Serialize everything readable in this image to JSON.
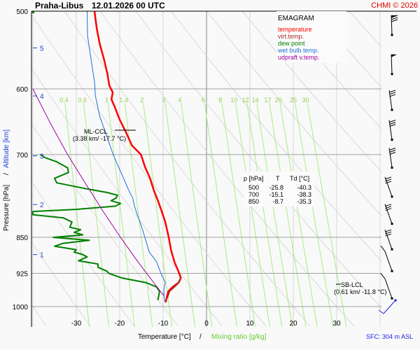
{
  "header": {
    "station": "Praha-Libus",
    "datetime": "12.01.2026 00 UTC",
    "copyright": "CHMI © 2026"
  },
  "legend": {
    "title": "EMAGRAM",
    "items": [
      {
        "label": "temperature",
        "color": "#ff0000"
      },
      {
        "label": "virt.temp.",
        "color": "#a52a2a"
      },
      {
        "label": "dew point",
        "color": "#008000"
      },
      {
        "label": "wet bulb temp.",
        "color": "#1e6fd9"
      },
      {
        "label": "udpraft v.temp.",
        "color": "#a000a0"
      }
    ]
  },
  "table": {
    "headers": [
      "p [hPa]",
      "T",
      "Td [°C]"
    ],
    "rows": [
      [
        "500",
        "-25.8",
        "-40.3"
      ],
      [
        "700",
        "-15.1",
        "-38.3"
      ],
      [
        "850",
        "-8.7",
        "-35.3"
      ]
    ]
  },
  "annotations": {
    "ml_ccl_title": "ML-CCL",
    "ml_ccl_value": "(3.38 km/ -17.7 °C)",
    "sb_lcl_title": "SB-LCL",
    "sb_lcl_value": "(0.61 km/ -11.8 °C)",
    "sfc": "SFC: 304 m ASL"
  },
  "chart_data": {
    "type": "line",
    "title": "Praha-Libus 12.01.2026 00 UTC",
    "subtitle": "EMAGRAM",
    "xlabel": "Temperature [°C]",
    "xlabel2": "Mixing ratio [g/kg]",
    "ylabel": "Pressure [hPa]",
    "ylabel2": "Altitude [km]",
    "xlim": [
      -38,
      35
    ],
    "ylim": [
      1000,
      500
    ],
    "x_ticks": [
      -30,
      -20,
      -10,
      0,
      10,
      20,
      30
    ],
    "y_ticks": [
      500,
      600,
      700,
      850,
      925,
      1000
    ],
    "altitude_ticks": [
      {
        "km": 5,
        "p": 545
      },
      {
        "km": 4,
        "p": 610
      },
      {
        "km": 3,
        "p": 702
      },
      {
        "km": 2,
        "p": 787
      },
      {
        "km": 1,
        "p": 885
      }
    ],
    "mixing_ratio_labels": [
      "0.4",
      "0.6",
      "1",
      "1.4",
      "2",
      "3",
      "4",
      "6",
      "8",
      "10",
      "12",
      "14",
      "17",
      "20",
      "25",
      "30"
    ],
    "mixing_ratio_values": [
      0.4,
      0.6,
      1,
      1.4,
      2,
      3,
      4,
      6,
      8,
      10,
      12,
      14,
      17,
      20,
      25,
      30
    ],
    "grid": true,
    "series": [
      {
        "name": "temperature",
        "color": "#ff0000",
        "points": [
          [
            500,
            -25.8
          ],
          [
            520,
            -25.3
          ],
          [
            540,
            -24.6
          ],
          [
            560,
            -23.6
          ],
          [
            580,
            -22.8
          ],
          [
            595,
            -22.4
          ],
          [
            605,
            -21.6
          ],
          [
            615,
            -21.9
          ],
          [
            625,
            -21.2
          ],
          [
            645,
            -20.0
          ],
          [
            665,
            -18.5
          ],
          [
            685,
            -17.2
          ],
          [
            700,
            -15.1
          ],
          [
            720,
            -14.2
          ],
          [
            740,
            -13.0
          ],
          [
            760,
            -12.2
          ],
          [
            780,
            -11.2
          ],
          [
            800,
            -10.3
          ],
          [
            820,
            -9.5
          ],
          [
            850,
            -8.7
          ],
          [
            875,
            -8.2
          ],
          [
            900,
            -7.4
          ],
          [
            920,
            -6.5
          ],
          [
            935,
            -5.9
          ],
          [
            945,
            -6.4
          ],
          [
            955,
            -7.8
          ],
          [
            965,
            -8.8
          ],
          [
            980,
            -9.2
          ],
          [
            990,
            -9.4
          ]
        ]
      },
      {
        "name": "virt.temp.",
        "color": "#a52a2a",
        "points": [
          [
            935,
            -5.9
          ],
          [
            950,
            -6.8
          ],
          [
            965,
            -8.5
          ],
          [
            980,
            -9.0
          ]
        ]
      },
      {
        "name": "wet bulb temp.",
        "color": "#1e6fd9",
        "points": [
          [
            500,
            -27.5
          ],
          [
            530,
            -27.4
          ],
          [
            560,
            -26.6
          ],
          [
            590,
            -25.8
          ],
          [
            610,
            -25.6
          ],
          [
            640,
            -24.6
          ],
          [
            670,
            -23.0
          ],
          [
            700,
            -21.5
          ],
          [
            720,
            -20.3
          ],
          [
            740,
            -19.1
          ],
          [
            760,
            -18.0
          ],
          [
            775,
            -17.0
          ],
          [
            790,
            -16.6
          ],
          [
            805,
            -16.0
          ],
          [
            820,
            -15.3
          ],
          [
            850,
            -14.2
          ],
          [
            880,
            -13.2
          ],
          [
            900,
            -11.5
          ],
          [
            925,
            -10.5
          ],
          [
            945,
            -9.5
          ],
          [
            960,
            -9.8
          ],
          [
            975,
            -9.8
          ],
          [
            990,
            -9.6
          ]
        ]
      },
      {
        "name": "dew point",
        "color": "#008000",
        "points": [
          [
            700,
            -38.3
          ],
          [
            705,
            -37.2
          ],
          [
            712,
            -34.5
          ],
          [
            722,
            -32.0
          ],
          [
            730,
            -31.8
          ],
          [
            740,
            -35.0
          ],
          [
            748,
            -34.5
          ],
          [
            758,
            -28.0
          ],
          [
            765,
            -23.0
          ],
          [
            770,
            -20.5
          ],
          [
            775,
            -20.8
          ],
          [
            780,
            -22.0
          ],
          [
            785,
            -19.8
          ],
          [
            790,
            -21.0
          ],
          [
            796,
            -30.0
          ],
          [
            800,
            -40.0
          ],
          [
            806,
            -40.0
          ],
          [
            812,
            -33.0
          ],
          [
            820,
            -31.0
          ],
          [
            830,
            -31.5
          ],
          [
            835,
            -29.0
          ],
          [
            840,
            -30.5
          ],
          [
            845,
            -28.5
          ],
          [
            850,
            -35.3
          ],
          [
            856,
            -27.0
          ],
          [
            862,
            -33.0
          ],
          [
            868,
            -35.0
          ],
          [
            875,
            -30.0
          ],
          [
            880,
            -30.5
          ],
          [
            885,
            -28.5
          ],
          [
            890,
            -27.5
          ],
          [
            898,
            -29.5
          ],
          [
            905,
            -25.0
          ],
          [
            912,
            -25.0
          ],
          [
            920,
            -23.0
          ],
          [
            925,
            -22.5
          ],
          [
            935,
            -19.5
          ],
          [
            945,
            -14.0
          ],
          [
            955,
            -11.5
          ],
          [
            965,
            -10.8
          ],
          [
            975,
            -11.0
          ],
          [
            985,
            -11.2
          ]
        ]
      },
      {
        "name": "udpraft v.temp.",
        "color": "#a000a0",
        "points": [
          [
            600,
            -40.0
          ],
          [
            650,
            -36.0
          ],
          [
            700,
            -32.0
          ],
          [
            750,
            -27.8
          ],
          [
            800,
            -23.8
          ],
          [
            850,
            -19.8
          ],
          [
            900,
            -15.8
          ],
          [
            950,
            -11.8
          ],
          [
            975,
            -9.8
          ]
        ]
      }
    ],
    "wind_barbs": [
      {
        "p": 520,
        "type": "pennant+barbs"
      },
      {
        "p": 570,
        "type": "pennant"
      },
      {
        "p": 620,
        "type": "barbs"
      },
      {
        "p": 665,
        "type": "barbs"
      },
      {
        "p": 710,
        "type": "barbs"
      },
      {
        "p": 760,
        "type": "barbs"
      },
      {
        "p": 810,
        "type": "barbs"
      },
      {
        "p": 860,
        "type": "barbs"
      },
      {
        "p": 905,
        "type": "barb"
      },
      {
        "p": 965,
        "type": "barb"
      }
    ],
    "levels": [
      {
        "name": "ML-CCL",
        "height_km": 3.38,
        "temp_c": -17.7
      },
      {
        "name": "SB-LCL",
        "height_km": 0.61,
        "temp_c": -11.8
      }
    ],
    "surface_height_m_asl": 304
  }
}
